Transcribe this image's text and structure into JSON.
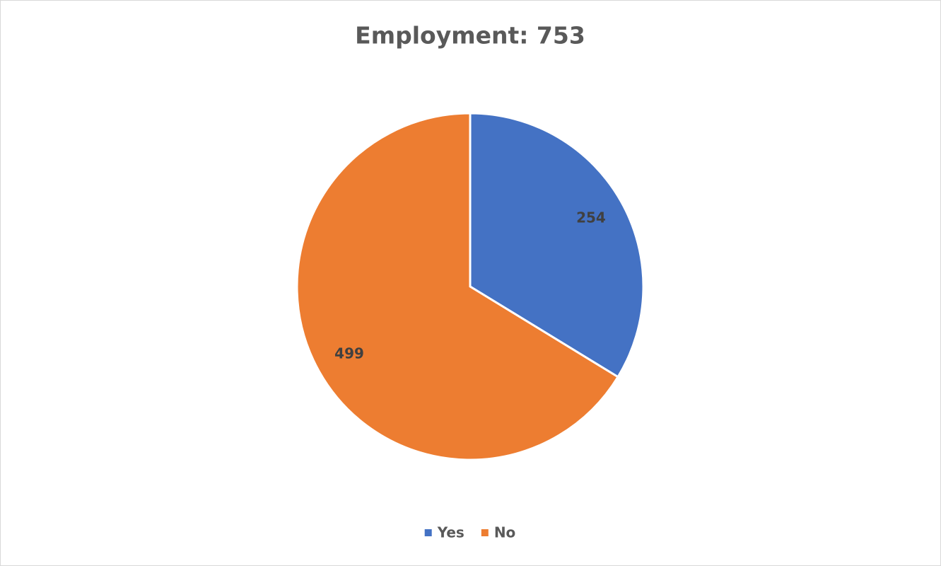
{
  "chart_data": {
    "type": "pie",
    "title": "Employment: 753",
    "categories": [
      "Yes",
      "No"
    ],
    "values": [
      254,
      499
    ],
    "colors": [
      "#4472c4",
      "#ed7d31"
    ],
    "legend": "bottom"
  }
}
